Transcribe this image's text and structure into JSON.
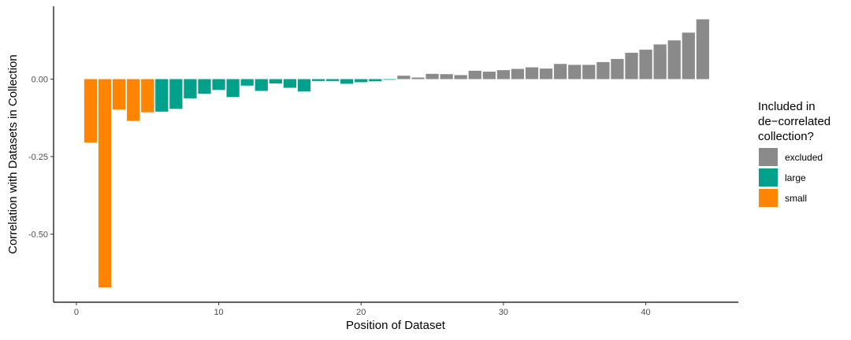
{
  "chart_data": {
    "type": "bar",
    "title": "",
    "xlabel": "Position of Dataset",
    "ylabel": "Correlation with Datasets in Collection",
    "xlim": [
      -1.6,
      46.5
    ],
    "ylim": [
      -0.72,
      0.235
    ],
    "x_ticks": [
      0,
      10,
      20,
      30,
      40
    ],
    "x_tick_labels": [
      "0",
      "10",
      "20",
      "30",
      "40"
    ],
    "y_ticks": [
      0.0,
      -0.25,
      -0.5
    ],
    "y_tick_labels": [
      "0.00",
      "-0.25",
      "-0.50"
    ],
    "grid": false,
    "legend_position": "right",
    "legend": {
      "title": [
        "Included in",
        "de−correlated",
        "collection?"
      ],
      "entries": [
        {
          "label": "excluded",
          "color": "#8a8a8a"
        },
        {
          "label": "large",
          "color": "#00a08a"
        },
        {
          "label": "small",
          "color": "#ff8400"
        }
      ]
    },
    "x": [
      1,
      2,
      3,
      4,
      5,
      6,
      7,
      8,
      9,
      10,
      11,
      12,
      13,
      14,
      15,
      16,
      17,
      18,
      19,
      20,
      21,
      22,
      23,
      24,
      25,
      26,
      27,
      28,
      29,
      30,
      31,
      32,
      33,
      34,
      35,
      36,
      37,
      38,
      39,
      40,
      41,
      42,
      43,
      44
    ],
    "values": [
      -0.205,
      -0.672,
      -0.098,
      -0.135,
      -0.107,
      -0.105,
      -0.096,
      -0.062,
      -0.047,
      -0.035,
      -0.058,
      -0.021,
      -0.038,
      -0.014,
      -0.028,
      -0.04,
      -0.006,
      -0.006,
      -0.015,
      -0.01,
      -0.007,
      -0.002,
      0.011,
      0.005,
      0.017,
      0.016,
      0.013,
      0.027,
      0.024,
      0.029,
      0.033,
      0.038,
      0.034,
      0.049,
      0.046,
      0.046,
      0.055,
      0.065,
      0.085,
      0.095,
      0.112,
      0.125,
      0.15,
      0.193
    ],
    "groups": [
      "small",
      "small",
      "small",
      "small",
      "small",
      "large",
      "large",
      "large",
      "large",
      "large",
      "large",
      "large",
      "large",
      "large",
      "large",
      "large",
      "large",
      "large",
      "large",
      "large",
      "large",
      "large",
      "excluded",
      "excluded",
      "excluded",
      "excluded",
      "excluded",
      "excluded",
      "excluded",
      "excluded",
      "excluded",
      "excluded",
      "excluded",
      "excluded",
      "excluded",
      "excluded",
      "excluded",
      "excluded",
      "excluded",
      "excluded",
      "excluded",
      "excluded",
      "excluded",
      "excluded"
    ]
  }
}
